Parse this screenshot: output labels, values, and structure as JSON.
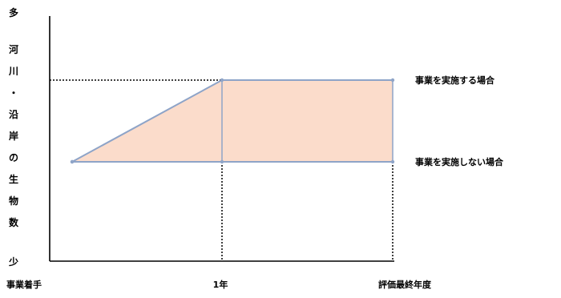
{
  "chart_data": {
    "type": "area",
    "title": "",
    "ylabel": "河川・沿岸の生物数",
    "ytick_labels": {
      "top": "多",
      "bottom": "少"
    },
    "categories": [
      "事業着手",
      "1年",
      "評価最終年度"
    ],
    "x": [
      0,
      1,
      2
    ],
    "ylim": [
      0,
      1
    ],
    "series": [
      {
        "name": "事業を実施する場合",
        "values": [
          0.5,
          1.0,
          1.0
        ]
      },
      {
        "name": "事業を実施しない場合",
        "values": [
          0.5,
          0.5,
          0.5
        ]
      }
    ],
    "grid": false,
    "legend": "right",
    "colors": {
      "fill": "#fbdccb",
      "line": "#8ea4c8",
      "axis": "#000000",
      "guide": "#000000"
    }
  }
}
